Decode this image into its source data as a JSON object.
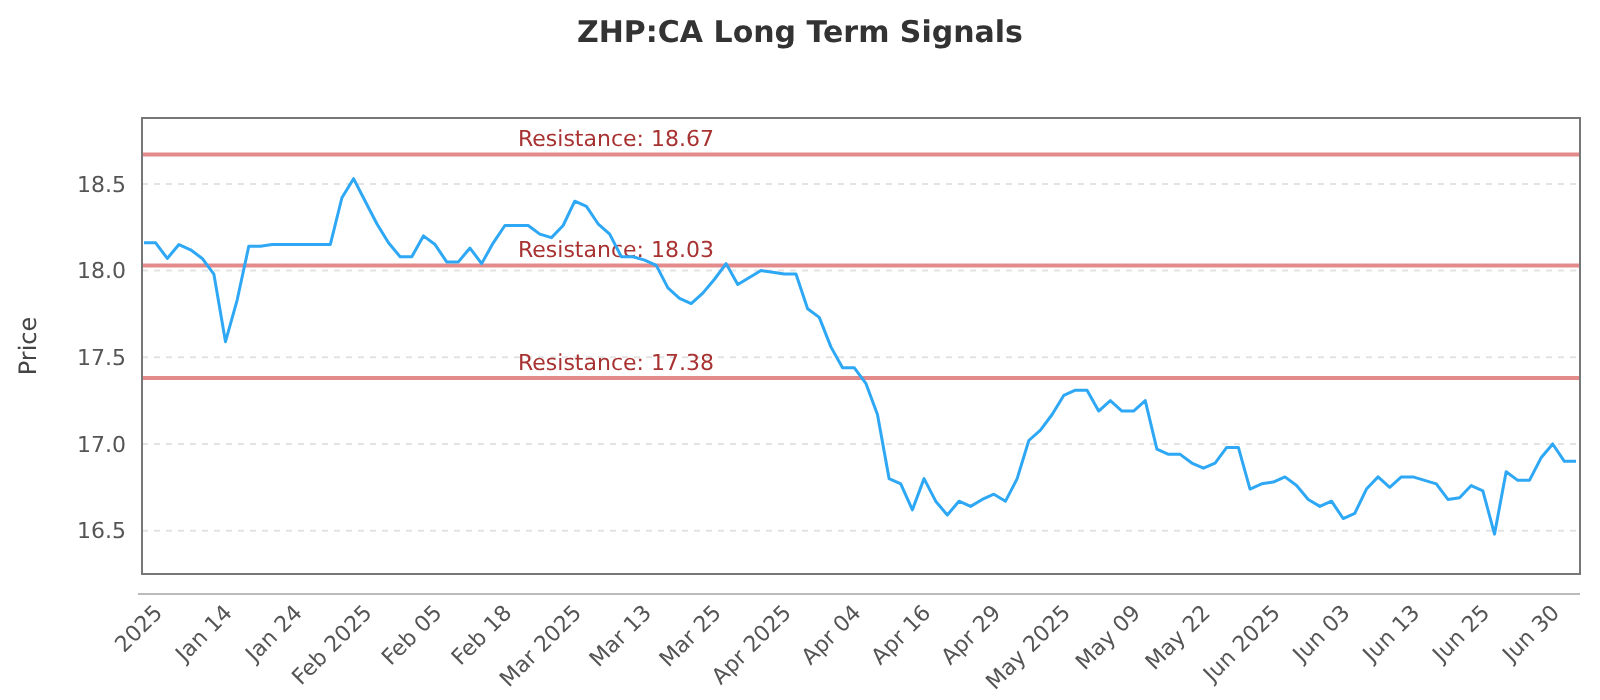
{
  "chart_data": {
    "type": "line",
    "title": "ZHP:CA Long Term Signals",
    "ylabel": "Price",
    "categories": [
      null,
      "2025",
      null,
      null,
      null,
      null,
      null,
      "Jan 14",
      null,
      null,
      null,
      null,
      null,
      "Jan 24",
      null,
      null,
      null,
      null,
      null,
      "Feb 2025",
      null,
      null,
      null,
      null,
      null,
      "Feb 05",
      null,
      null,
      null,
      null,
      null,
      "Feb 18",
      null,
      null,
      null,
      null,
      null,
      "Mar 2025",
      null,
      null,
      null,
      null,
      null,
      "Mar 13",
      null,
      null,
      null,
      null,
      null,
      "Mar 25",
      null,
      null,
      null,
      null,
      null,
      "Apr 2025",
      null,
      null,
      null,
      null,
      null,
      "Apr 04",
      null,
      null,
      null,
      null,
      null,
      "Apr 16",
      null,
      null,
      null,
      null,
      null,
      "Apr 29",
      null,
      null,
      null,
      null,
      null,
      "May 2025",
      null,
      null,
      null,
      null,
      null,
      "May 09",
      null,
      null,
      null,
      null,
      null,
      "May 22",
      null,
      null,
      null,
      null,
      null,
      "Jun 2025",
      null,
      null,
      null,
      null,
      null,
      "Jun 03",
      null,
      null,
      null,
      null,
      null,
      "Jun 13",
      null,
      null,
      null,
      null,
      null,
      "Jun 25",
      null,
      null,
      null,
      null,
      null,
      "Jun 30",
      null,
      null
    ],
    "series": [
      {
        "color": "#2ea8f5",
        "values": [
          18.16,
          18.16,
          18.07,
          18.15,
          18.12,
          18.07,
          17.98,
          17.59,
          17.83,
          18.14,
          18.14,
          18.15,
          18.15,
          18.15,
          18.15,
          18.15,
          18.15,
          18.42,
          18.53,
          18.4,
          18.27,
          18.16,
          18.08,
          18.08,
          18.2,
          18.15,
          18.05,
          18.05,
          18.13,
          18.04,
          18.16,
          18.26,
          18.26,
          18.26,
          18.21,
          18.19,
          18.26,
          18.4,
          18.37,
          18.27,
          18.21,
          18.08,
          18.08,
          18.06,
          18.03,
          17.9,
          17.84,
          17.81,
          17.87,
          17.95,
          18.04,
          17.92,
          17.96,
          18.0,
          17.99,
          17.98,
          17.98,
          17.78,
          17.73,
          17.56,
          17.44,
          17.44,
          17.35,
          17.17,
          16.8,
          16.77,
          16.62,
          16.8,
          16.67,
          16.59,
          16.67,
          16.64,
          16.68,
          16.71,
          16.67,
          16.8,
          17.02,
          17.08,
          17.17,
          17.28,
          17.31,
          17.31,
          17.19,
          17.25,
          17.19,
          17.19,
          17.25,
          16.97,
          16.94,
          16.94,
          16.89,
          16.86,
          16.89,
          16.98,
          16.98,
          16.74,
          16.77,
          16.78,
          16.81,
          16.76,
          16.68,
          16.64,
          16.67,
          16.57,
          16.6,
          16.74,
          16.81,
          16.75,
          16.81,
          16.81,
          16.79,
          16.77,
          16.68,
          16.69,
          16.76,
          16.73,
          16.48,
          16.84,
          16.79,
          16.79,
          16.92,
          17.0,
          16.9,
          16.9
        ]
      }
    ],
    "ylim": [
      16.25,
      18.88
    ],
    "yticks": [
      16.5,
      {
        "value": 17,
        "label": "17.0"
      },
      17.5,
      {
        "value": 18,
        "label": "18.0"
      },
      18.5
    ],
    "grid": "y",
    "marker": "none",
    "line_style": "solid",
    "ref_lines": [
      {
        "axis": "y",
        "value": 18.67,
        "label": "Resistance: 18.67",
        "color": "#e38b8b"
      },
      {
        "axis": "y",
        "value": 18.03,
        "label": "Resistance: 18.03",
        "color": "#e38b8b"
      },
      {
        "axis": "y",
        "value": 17.38,
        "label": "Resistance: 17.38",
        "color": "#e38b8b"
      }
    ]
  }
}
